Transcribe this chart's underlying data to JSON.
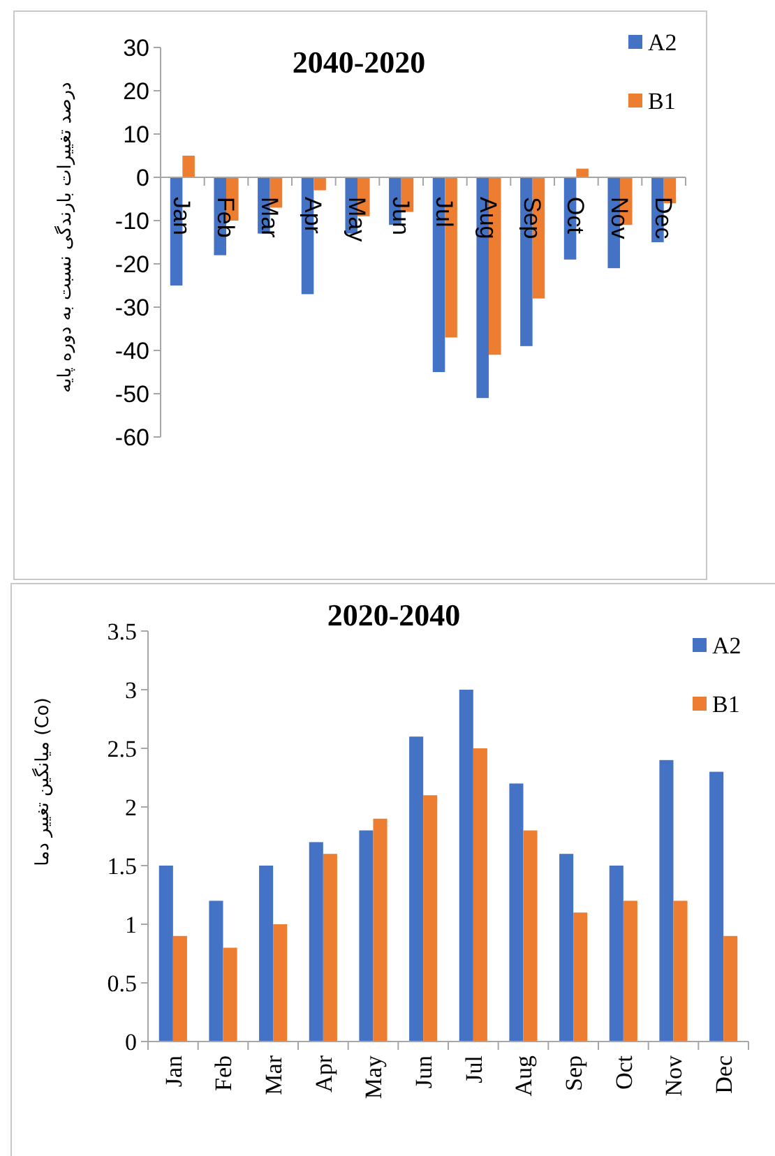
{
  "chart_data": [
    {
      "type": "bar",
      "title": "2040-2020",
      "ylabel": "درصد تغییرات  بارندگی نسبت به دوره پایه",
      "categories": [
        "Jan",
        "Feb",
        "Mar",
        "Apr",
        "May",
        "Jun",
        "Jul",
        "Aug",
        "Sep",
        "Oct",
        "Nov",
        "Dec"
      ],
      "series": [
        {
          "name": "A2",
          "color": "#4472c4",
          "values": [
            -25,
            -18,
            -13,
            -27,
            -13,
            -11,
            -45,
            -51,
            -39,
            -19,
            -21,
            -15
          ]
        },
        {
          "name": "B1",
          "color": "#ed7d31",
          "values": [
            5,
            -10,
            -7,
            -3,
            -9,
            -8,
            -37,
            -41,
            -28,
            2,
            -11,
            -6
          ]
        }
      ],
      "ylim": [
        -60,
        30
      ],
      "yticks": [
        -60,
        -50,
        -40,
        -30,
        -20,
        -10,
        0,
        10,
        20,
        30
      ],
      "grid": false,
      "legend": "top right"
    },
    {
      "type": "bar",
      "title": "2020-2040",
      "ylabel": "میانگین تغییر دما (Co)",
      "categories": [
        "Jan",
        "Feb",
        "Mar",
        "Apr",
        "May",
        "Jun",
        "Jul",
        "Aug",
        "Sep",
        "Oct",
        "Nov",
        "Dec"
      ],
      "series": [
        {
          "name": "A2",
          "color": "#4472c4",
          "values": [
            1.5,
            1.2,
            1.5,
            1.7,
            1.8,
            2.6,
            3,
            2.2,
            1.6,
            1.5,
            2.4,
            2.3
          ]
        },
        {
          "name": "B1",
          "color": "#ed7d31",
          "values": [
            0.9,
            0.8,
            1,
            1.6,
            1.9,
            2.1,
            2.5,
            1.8,
            1.1,
            1.2,
            1.2,
            0.9
          ]
        }
      ],
      "ylim": [
        0,
        3.5
      ],
      "yticks": [
        0,
        0.5,
        1,
        1.5,
        2,
        2.5,
        3,
        3.5
      ],
      "grid": false,
      "legend": "top right"
    }
  ]
}
